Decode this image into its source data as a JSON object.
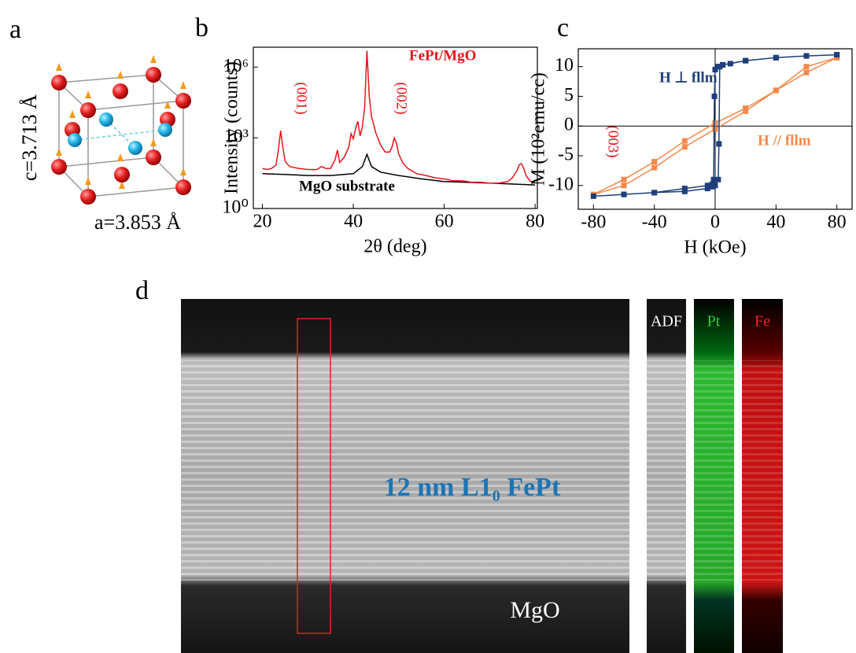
{
  "panels": {
    "a": {
      "label": "a",
      "c_label": "c=3.713 Å",
      "a_label": "a=3.853 Å"
    },
    "b": {
      "label": "b"
    },
    "c": {
      "label": "c"
    },
    "d": {
      "label": "d",
      "film_label": "12 nm L1₀ FePt",
      "substrate_label": "MgO",
      "maps": [
        "ADF",
        "Pt",
        "Fe"
      ]
    }
  },
  "chart_data": [
    {
      "type": "line",
      "x_label": "2θ (deg)",
      "y_label": "Intensity (counts)",
      "log_y": true,
      "xlim": [
        18,
        80.5
      ],
      "xticks": [
        20,
        40,
        60,
        80
      ],
      "ylim": [
        1,
        7000000
      ],
      "yticks": [
        {
          "value": 1,
          "label": "10⁰"
        },
        {
          "value": 1000,
          "label": "10³"
        },
        {
          "value": 1000000,
          "label": "10⁶"
        }
      ],
      "annotations": [
        "(001)",
        "(002)",
        "(003)"
      ],
      "series": [
        {
          "name": "MgO substrate",
          "color": "#000000",
          "x": [
            20,
            25,
            30,
            35,
            40,
            42,
            43,
            44,
            46,
            50,
            55,
            60,
            70,
            80
          ],
          "values": [
            30,
            28,
            25,
            25,
            30,
            60,
            200,
            60,
            35,
            25,
            18,
            14,
            12,
            10
          ]
        },
        {
          "name": "FePt/MgO",
          "color": "#e8141b",
          "x": [
            20,
            21,
            22,
            23,
            23.5,
            24,
            24.5,
            25,
            26,
            28,
            30,
            32,
            33,
            34,
            35,
            36,
            36.5,
            37,
            38,
            39,
            39.5,
            40,
            40.5,
            41,
            41.5,
            42,
            42.5,
            43,
            43.5,
            44,
            45,
            46,
            47,
            48,
            48.5,
            49,
            49.5,
            50,
            51,
            52,
            54,
            56,
            58,
            60,
            62,
            64,
            66,
            68,
            70,
            72,
            74,
            75,
            76,
            76.5,
            77,
            77.5,
            78,
            79,
            80
          ],
          "values": [
            50,
            45,
            50,
            70,
            300,
            2000,
            400,
            100,
            60,
            50,
            45,
            45,
            60,
            50,
            50,
            120,
            300,
            90,
            150,
            400,
            1500,
            900,
            2500,
            5000,
            1200,
            3000,
            20000,
            5000000,
            60000,
            8000,
            1500,
            500,
            250,
            250,
            400,
            1000,
            600,
            200,
            80,
            50,
            30,
            25,
            20,
            18,
            15,
            15,
            13,
            13,
            12,
            12,
            14,
            20,
            40,
            70,
            80,
            50,
            25,
            14,
            12
          ]
        }
      ]
    },
    {
      "type": "scatter",
      "x_label": "H (kOe)",
      "y_label": "M (10²emu/cc)",
      "xlim": [
        -90,
        90
      ],
      "xticks": [
        -80,
        -40,
        0,
        40,
        80
      ],
      "ylim": [
        -14,
        13
      ],
      "yticks": [
        -10,
        -5,
        0,
        5,
        10
      ],
      "series": [
        {
          "name": "H // fllm",
          "color": "#f5894a",
          "x": [
            80,
            60,
            40,
            20,
            0,
            -20,
            -40,
            -60,
            -80,
            -60,
            -40,
            -20,
            0,
            20,
            40,
            60,
            80
          ],
          "values": [
            11.5,
            10,
            6,
            3,
            0.5,
            -2.5,
            -6,
            -9,
            -11.5,
            -10,
            -7,
            -3.5,
            -0.5,
            2.5,
            6,
            9,
            11.5
          ]
        },
        {
          "name": "H ⊥ fllm",
          "color": "#1d3f7a",
          "x": [
            80,
            60,
            40,
            20,
            10,
            5,
            3,
            2.5,
            2,
            0,
            -2,
            -5,
            -20,
            -40,
            -60,
            -80,
            -60,
            -40,
            -20,
            -5,
            -2,
            -1,
            -0.5,
            0,
            2,
            5,
            20,
            40,
            60,
            80
          ],
          "values": [
            12,
            11.8,
            11.5,
            11,
            10.5,
            10.3,
            10,
            -3,
            -9,
            -10,
            -10.2,
            -10.5,
            -11,
            -11.2,
            -11.5,
            -11.8,
            -11.5,
            -11.2,
            -10.5,
            -10,
            -9.8,
            -9,
            5,
            9.5,
            10,
            10.3,
            11,
            11.5,
            11.8,
            12
          ]
        }
      ]
    }
  ]
}
